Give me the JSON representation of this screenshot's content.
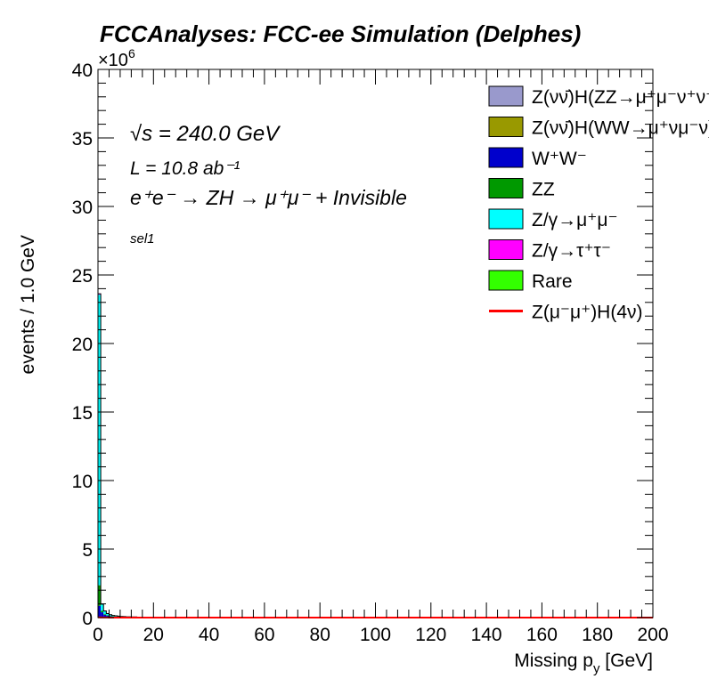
{
  "chart_data": {
    "type": "area",
    "title": "FCCAnalyses: FCC-ee Simulation (Delphes)",
    "xlabel": "Missing p_{y} [GeV]",
    "ylabel": "events / 1.0 GeV",
    "y_exponent_label": "×10^6",
    "xlim": [
      0,
      200
    ],
    "ylim": [
      0,
      40
    ],
    "y_unit_scale": 1000000,
    "x_ticks": [
      0,
      20,
      40,
      60,
      80,
      100,
      120,
      140,
      160,
      180,
      200
    ],
    "y_ticks": [
      0,
      5,
      10,
      15,
      20,
      25,
      30,
      35,
      40
    ],
    "annotations": {
      "sqrt_s": "√s = 240.0 GeV",
      "lumi": "L = 10.8 ab⁻¹",
      "process": "e⁺e⁻ → ZH → μ⁺μ⁻ + Invisible",
      "selection": "sel1"
    },
    "legend_position": "top-right",
    "bin_edges": [
      0,
      1,
      2,
      3,
      4,
      5,
      6,
      7,
      8,
      9,
      10,
      12,
      14,
      16,
      18,
      20,
      200
    ],
    "stack_series": [
      {
        "name": "Z(νν̄)H(ZZ→μ⁺μ⁻ν⁺ν⁻)",
        "color": "#9999cc",
        "values": [
          0.01,
          0.005,
          0.003,
          0.002,
          0.001,
          0.001,
          0.001,
          0.001,
          0.001,
          0,
          0,
          0,
          0,
          0,
          0,
          0
        ]
      },
      {
        "name": "Z(νν̄)H(WW→μ⁺νμ⁻ν)",
        "color": "#999900",
        "values": [
          0.05,
          0.03,
          0.02,
          0.01,
          0.01,
          0.005,
          0.005,
          0.003,
          0.003,
          0.002,
          0.002,
          0.001,
          0.001,
          0.001,
          0.001,
          0
        ]
      },
      {
        "name": "W⁺W⁻",
        "color": "#0000cc",
        "values": [
          0.8,
          0.35,
          0.18,
          0.12,
          0.09,
          0.07,
          0.06,
          0.05,
          0.04,
          0.035,
          0.03,
          0.025,
          0.02,
          0.015,
          0.01,
          0.002
        ]
      },
      {
        "name": "ZZ",
        "color": "#009900",
        "values": [
          1.5,
          0.12,
          0.05,
          0.03,
          0.02,
          0.015,
          0.01,
          0.01,
          0.008,
          0.006,
          0.005,
          0.004,
          0.003,
          0.002,
          0.002,
          0.001
        ]
      },
      {
        "name": "Z/γ→μ⁺μ⁻",
        "color": "#00ffff",
        "values": [
          21.2,
          0.45,
          0.22,
          0.12,
          0.08,
          0.06,
          0.05,
          0.04,
          0.03,
          0.025,
          0.02,
          0.015,
          0.01,
          0.008,
          0.005,
          0.001
        ]
      },
      {
        "name": "Z/γ→τ⁺τ⁻",
        "color": "#ff00ff",
        "values": [
          0.05,
          0.02,
          0.01,
          0.005,
          0.004,
          0.003,
          0.002,
          0.002,
          0.001,
          0.001,
          0.001,
          0,
          0,
          0,
          0,
          0
        ]
      },
      {
        "name": "Rare",
        "color": "#33ff00",
        "values": [
          0.02,
          0.01,
          0.005,
          0.003,
          0.002,
          0.001,
          0.001,
          0.001,
          0,
          0,
          0,
          0,
          0,
          0,
          0,
          0
        ]
      }
    ],
    "signal_series": {
      "name": "Z(μ⁻μ⁺)H(4ν)",
      "color": "#ff0000",
      "values": [
        0.02,
        0.012,
        0.008,
        0.005,
        0.004,
        0.003,
        0.002,
        0.002,
        0.002,
        0.001,
        0.001,
        0.001,
        0.001,
        0,
        0,
        0
      ]
    }
  }
}
